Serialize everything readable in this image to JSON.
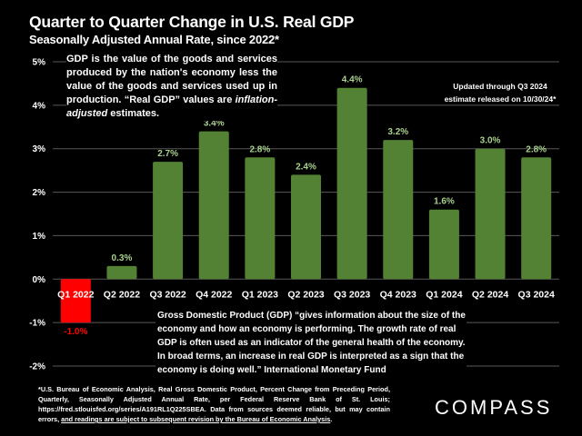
{
  "header": {
    "title": "Quarter to Quarter Change in U.S. Real GDP",
    "subtitle": "Seasonally Adjusted Annual Rate, since 2022*"
  },
  "notes": {
    "definition_part1": "GDP is the value of the goods and services produced by the nation's economy less the value of the goods and services used up in production. “Real GDP” values are ",
    "definition_italic": "inflation-adjusted",
    "definition_part2": " estimates.",
    "updated_line1": "Updated through Q3 2024",
    "updated_line2": "estimate released on 10/30/24*",
    "imf_quote": "Gross Domestic Product (GDP) “gives information about the size of the economy and how an economy is performing. The growth rate of real GDP is often used as an indicator of the general health of the economy. In broad terms, an increase in real GDP is interpreted as a sign that the economy is doing well.” International Monetary Fund"
  },
  "footer": {
    "source_text": "*U.S. Bureau of Economic Analysis, Real Gross Domestic Product, Percent Change from Preceding Period, Quarterly, Seasonally Adjusted Annual Rate, per Federal Reserve Bank of St. Louis; https://fred.stlouisfed.org/series/A191RL1Q225SBEA. Data from sources deemed reliable, but may contain errors, ",
    "source_underlined": "and readings are subject to subsequent revision by the Bureau of Economic Analysis",
    "source_end": ".",
    "logo": "COMPASS"
  },
  "colors": {
    "positive_bar": "#548235",
    "negative_bar": "#FF0000",
    "positive_label": "#A9D18E",
    "negative_label": "#FF0000",
    "gridline": "#595959"
  },
  "chart_data": {
    "type": "bar",
    "title": "Quarter to Quarter Change in U.S. Real GDP",
    "subtitle": "Seasonally Adjusted Annual Rate, since 2022*",
    "xlabel": "",
    "ylabel": "",
    "categories": [
      "Q1 2022",
      "Q2 2022",
      "Q3 2022",
      "Q4 2022",
      "Q1 2023",
      "Q2 2023",
      "Q3 2023",
      "Q4 2023",
      "Q1 2024",
      "Q2 2024",
      "Q3 2024"
    ],
    "values": [
      -1.0,
      0.3,
      2.7,
      3.4,
      2.8,
      2.4,
      4.4,
      3.2,
      1.6,
      3.0,
      2.8
    ],
    "value_labels": [
      "-1.0%",
      "0.3%",
      "2.7%",
      "3.4%",
      "2.8%",
      "2.4%",
      "4.4%",
      "3.2%",
      "1.6%",
      "3.0%",
      "2.8%"
    ],
    "ylim": [
      -2,
      5
    ],
    "yticks": [
      5,
      4,
      3,
      2,
      1,
      0,
      -1,
      -2
    ],
    "ytick_labels": [
      "5%",
      "4%",
      "3%",
      "2%",
      "1%",
      "0%",
      "-1%",
      "-2%"
    ],
    "grid": true,
    "legend": "none"
  }
}
